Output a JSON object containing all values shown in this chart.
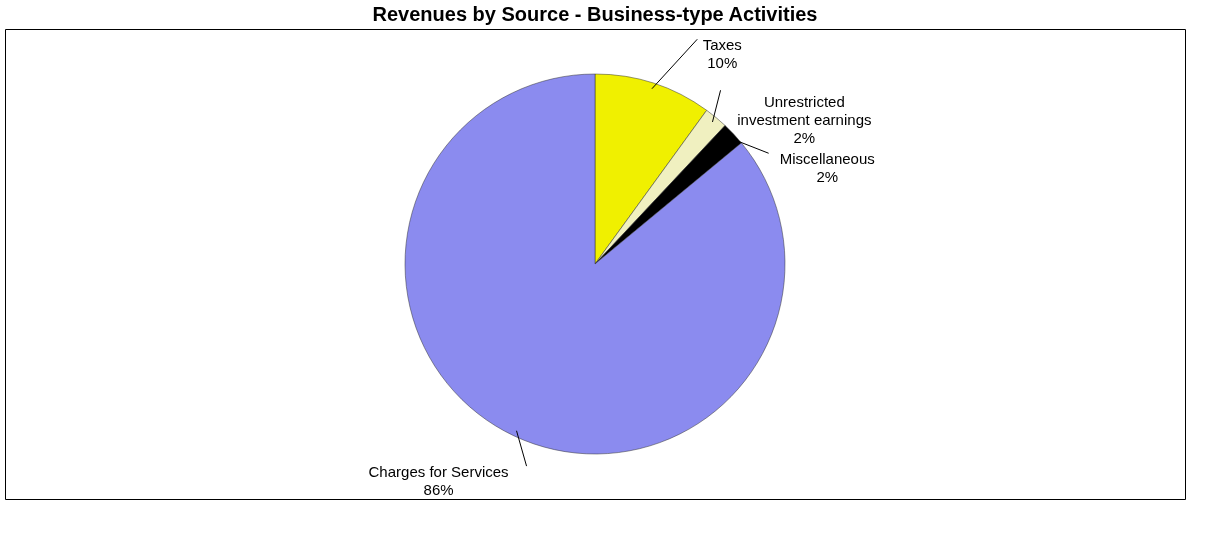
{
  "chart_data": {
    "type": "pie",
    "title": "Revenues by Source - Business-type Activities",
    "categories": [
      "Taxes",
      "Unrestricted investment earnings",
      "Miscellaneous",
      "Charges for Services"
    ],
    "values": [
      10,
      2,
      2,
      86
    ],
    "colors": [
      "#f0f000",
      "#f0f0c0",
      "#000000",
      "#8b8bef"
    ],
    "value_labels": [
      "10%",
      "2%",
      "2%",
      "86%"
    ],
    "legend": false
  }
}
